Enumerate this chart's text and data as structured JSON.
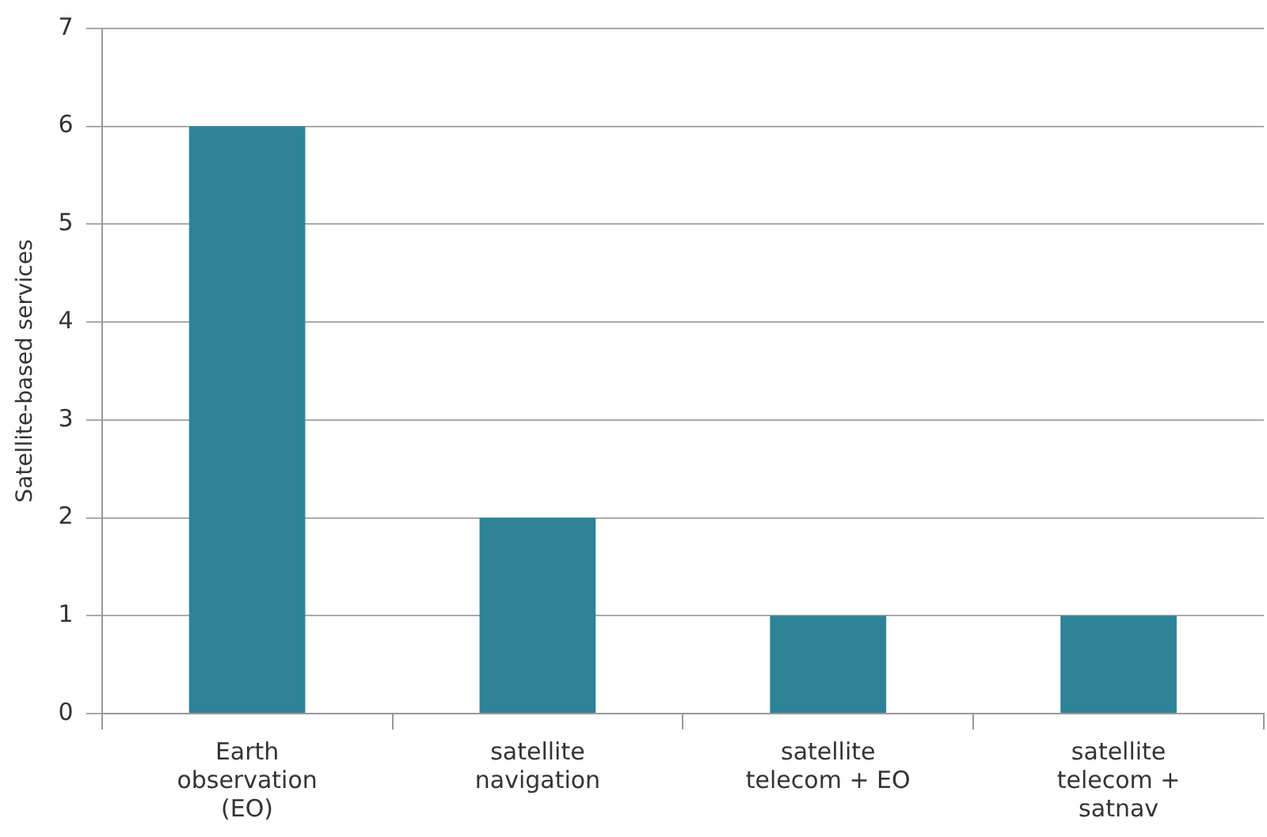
{
  "chart_data": {
    "type": "bar",
    "ylabel": "Satellite-based services",
    "categories": [
      "Earth observation (EO)",
      "satellite navigation",
      "satellite telecom + EO",
      "satellite telecom + satnav"
    ],
    "values": [
      6,
      2,
      1,
      1
    ],
    "color": "#2e8399",
    "ylim": [
      0,
      7
    ],
    "yticks": [
      0,
      1,
      2,
      3,
      4,
      5,
      6,
      7
    ],
    "grid": "y",
    "legend": false
  }
}
